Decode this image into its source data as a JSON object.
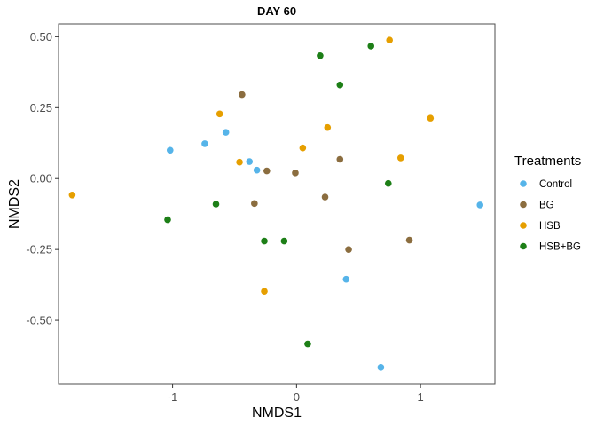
{
  "chart_data": {
    "type": "scatter",
    "title": "DAY 60",
    "xlabel": "NMDS1",
    "ylabel": "NMDS2",
    "xlim": [
      -1.92,
      1.6
    ],
    "ylim": [
      -0.725,
      0.545
    ],
    "x_ticks": [
      -1,
      0,
      1
    ],
    "y_ticks": [
      0.5,
      0.25,
      0.0,
      -0.25,
      -0.5
    ],
    "x_tick_labels": [
      "-1",
      "0",
      "1"
    ],
    "y_tick_labels": [
      "0.50",
      "0.25",
      "0.00",
      "-0.25",
      "-0.50"
    ],
    "grid": false,
    "legend": {
      "title": "Treatments",
      "position": "right"
    },
    "series": [
      {
        "name": "Control",
        "color": "#56B4E9",
        "points": [
          {
            "x": -1.02,
            "y": 0.1
          },
          {
            "x": -0.74,
            "y": 0.123
          },
          {
            "x": -0.57,
            "y": 0.163
          },
          {
            "x": -0.38,
            "y": 0.06
          },
          {
            "x": -0.32,
            "y": 0.03
          },
          {
            "x": 0.4,
            "y": -0.355
          },
          {
            "x": 0.68,
            "y": -0.665
          },
          {
            "x": 1.48,
            "y": -0.093
          }
        ]
      },
      {
        "name": "BG",
        "color": "#8B6D3F",
        "points": [
          {
            "x": -0.44,
            "y": 0.296
          },
          {
            "x": -0.24,
            "y": 0.027
          },
          {
            "x": -0.34,
            "y": -0.088
          },
          {
            "x": -0.01,
            "y": 0.02
          },
          {
            "x": 0.35,
            "y": 0.068
          },
          {
            "x": 0.23,
            "y": -0.065
          },
          {
            "x": 0.42,
            "y": -0.25
          },
          {
            "x": 0.91,
            "y": -0.217
          }
        ]
      },
      {
        "name": "HSB",
        "color": "#E69F00",
        "points": [
          {
            "x": -1.81,
            "y": -0.058
          },
          {
            "x": -0.62,
            "y": 0.228
          },
          {
            "x": -0.46,
            "y": 0.058
          },
          {
            "x": -0.26,
            "y": -0.397
          },
          {
            "x": 0.05,
            "y": 0.108
          },
          {
            "x": 0.25,
            "y": 0.18
          },
          {
            "x": 0.75,
            "y": 0.488
          },
          {
            "x": 0.84,
            "y": 0.073
          },
          {
            "x": 1.08,
            "y": 0.213
          }
        ]
      },
      {
        "name": "HSB+BG",
        "color": "#1D7F17",
        "points": [
          {
            "x": -1.04,
            "y": -0.145
          },
          {
            "x": -0.65,
            "y": -0.09
          },
          {
            "x": -0.26,
            "y": -0.22
          },
          {
            "x": -0.1,
            "y": -0.22
          },
          {
            "x": 0.09,
            "y": -0.583
          },
          {
            "x": 0.19,
            "y": 0.433
          },
          {
            "x": 0.35,
            "y": 0.33
          },
          {
            "x": 0.6,
            "y": 0.467
          },
          {
            "x": 0.74,
            "y": -0.017
          }
        ]
      }
    ]
  }
}
